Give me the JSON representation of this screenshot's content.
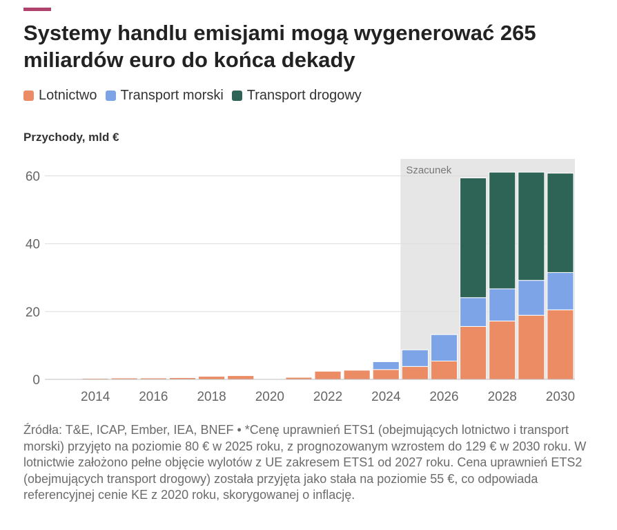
{
  "header": {
    "accent_color": "#b0436e",
    "title": "Systemy handlu emisjami mogą wygenerować 265 miliardów euro do końca dekady"
  },
  "legend": [
    {
      "label": "Lotnictwo",
      "color": "#ec8c64"
    },
    {
      "label": "Transport morski",
      "color": "#7ea4e8"
    },
    {
      "label": "Transport drogowy",
      "color": "#2e6455"
    }
  ],
  "chart_data": {
    "type": "bar",
    "stacked": true,
    "ylabel": "Przychody, mld €",
    "ylim": [
      0,
      65
    ],
    "yticks": [
      0,
      20,
      40,
      60
    ],
    "x": [
      2013,
      2014,
      2015,
      2016,
      2017,
      2018,
      2019,
      2020,
      2021,
      2022,
      2023,
      2024,
      2025,
      2026,
      2027,
      2028,
      2029,
      2030
    ],
    "xticks": [
      2014,
      2016,
      2018,
      2020,
      2022,
      2024,
      2026,
      2028,
      2030
    ],
    "series": [
      {
        "name": "Lotnictwo",
        "color": "#ec8c64",
        "values": [
          0.2,
          0.3,
          0.4,
          0.4,
          0.5,
          0.9,
          1.1,
          0.1,
          0.6,
          2.4,
          2.7,
          2.9,
          3.8,
          5.4,
          15.6,
          17.2,
          18.9,
          20.5
        ]
      },
      {
        "name": "Transport morski",
        "color": "#7ea4e8",
        "values": [
          0,
          0,
          0,
          0,
          0,
          0,
          0,
          0,
          0,
          0,
          0,
          2.3,
          4.9,
          7.8,
          8.5,
          9.5,
          10.3,
          11.0
        ]
      },
      {
        "name": "Transport drogowy",
        "color": "#2e6455",
        "values": [
          0,
          0,
          0,
          0,
          0,
          0,
          0,
          0,
          0,
          0,
          0,
          0,
          0,
          0,
          35.3,
          34.4,
          31.9,
          29.3
        ]
      }
    ],
    "estimate": {
      "label": "Szacunek",
      "from": 2025,
      "to": 2030
    }
  },
  "source_note": "Źródła: T&E, ICAP, Ember, IEA, BNEF • *Cenę uprawnień ETS1 (obejmujących lotnictwo i transport morski) przyjęto na poziomie 80 € w 2025 roku, z prognozowanym wzrostem do 129 € w 2030 roku. W lotnictwie założono pełne objęcie wylotów z UE zakresem ETS1 od 2027 roku. Cena uprawnień ETS2 (obejmujących transport drogowy) została przyjęta jako stała na poziomie 55 €, co odpowiada referencyjnej cenie KE z 2020 roku, skorygowanej o inflację."
}
